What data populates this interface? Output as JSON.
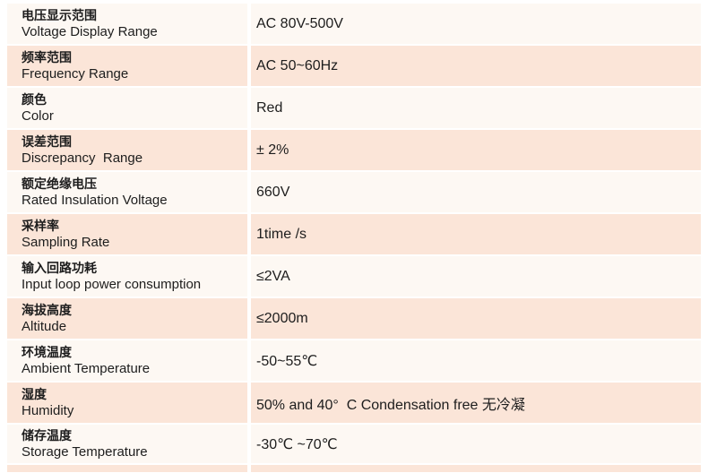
{
  "colors": {
    "row_light": "#fdf8f3",
    "row_pink": "#fbe5d8",
    "divider": "#ffffff",
    "text": "#1d1d1d"
  },
  "table": {
    "rows": [
      {
        "label_zh": "电压显示范围",
        "label_en": "Voltage Display Range",
        "value": "AC 80V-500V"
      },
      {
        "label_zh": "频率范围",
        "label_en": "Frequency Range",
        "value": "AC 50~60Hz"
      },
      {
        "label_zh": "颜色",
        "label_en": "Color",
        "value": "Red"
      },
      {
        "label_zh": "误差范围",
        "label_en": "Discrepancy  Range",
        "value": "± 2%"
      },
      {
        "label_zh": "额定绝缘电压",
        "label_en": "Rated Insulation Voltage",
        "value": "660V"
      },
      {
        "label_zh": "采样率",
        "label_en": "Sampling Rate",
        "value": "1time /s"
      },
      {
        "label_zh": "输入回路功耗",
        "label_en": "Input loop power consumption",
        "value": "≤2VA"
      },
      {
        "label_zh": "海拔高度",
        "label_en": "Altitude",
        "value": "≤2000m"
      },
      {
        "label_zh": "环境温度",
        "label_en": "Ambient Temperature",
        "value": "-50~55℃"
      },
      {
        "label_zh": "湿度",
        "label_en": "Humidity",
        "value": "50% and 40°  C Condensation free 无冷凝"
      },
      {
        "label_zh": "储存温度",
        "label_en": "Storage Temperature",
        "value": "-30℃ ~70℃"
      }
    ]
  }
}
